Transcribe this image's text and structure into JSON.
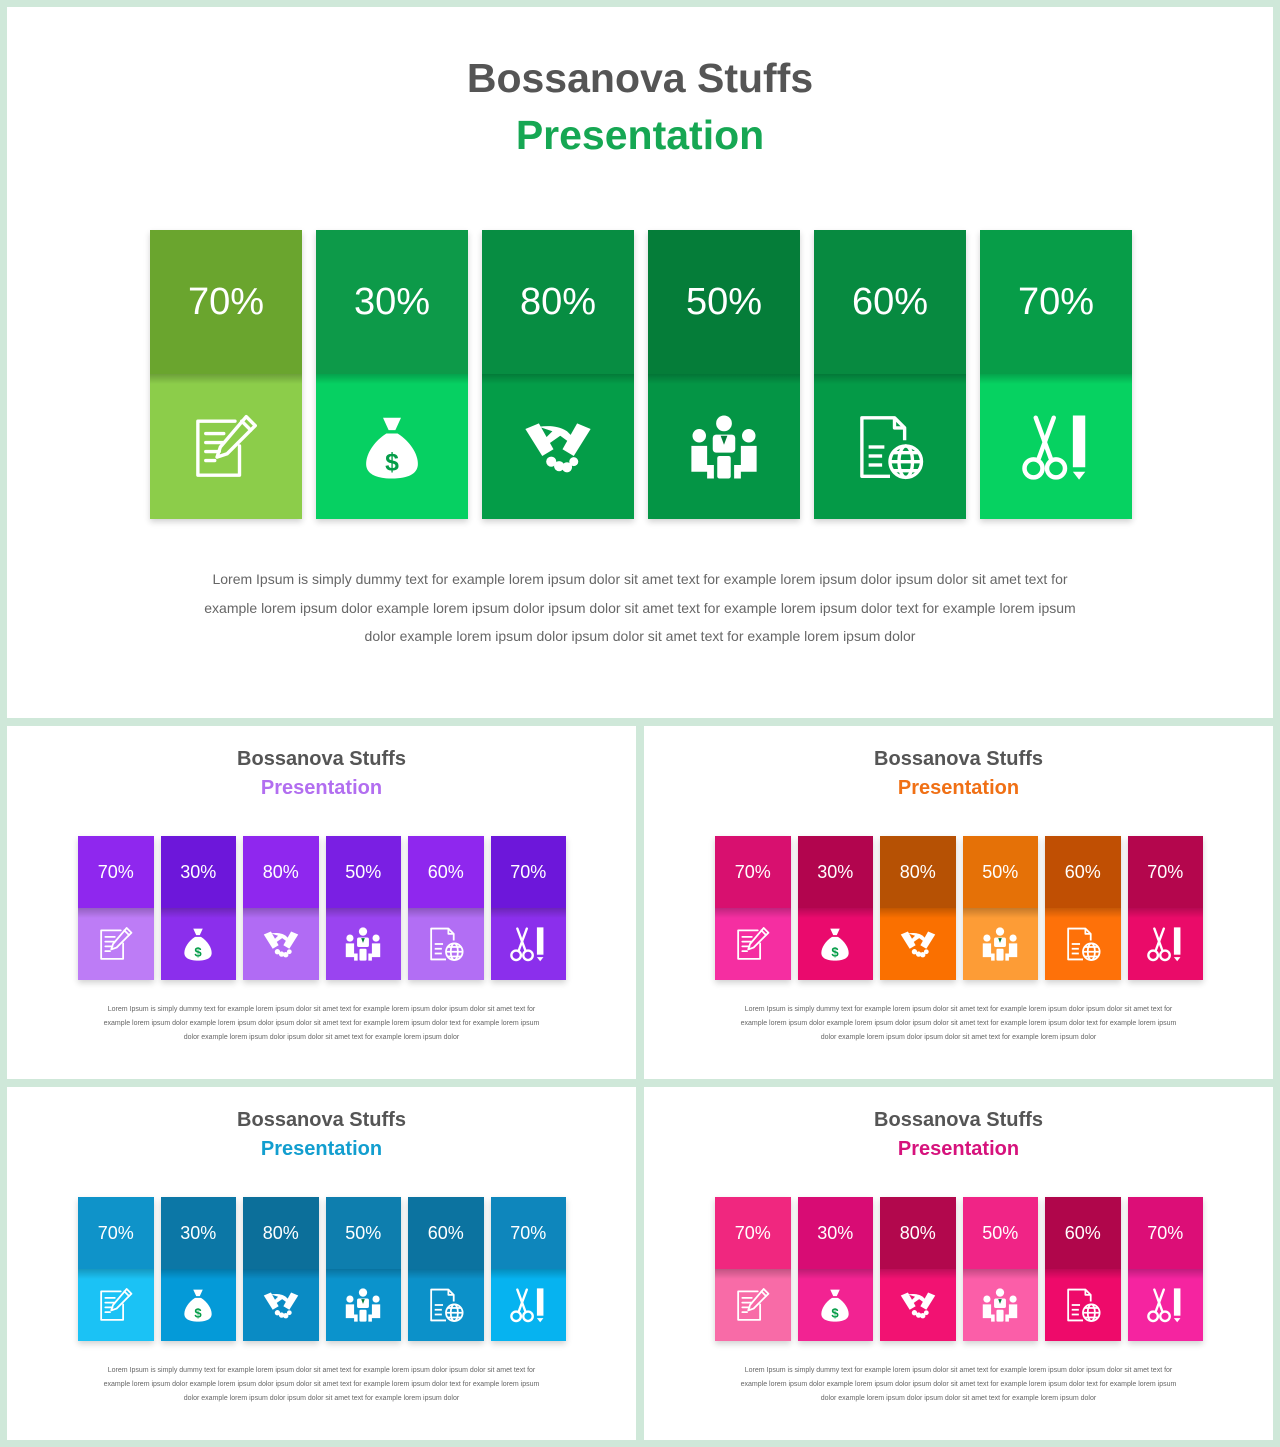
{
  "body_lines": [
    "Lorem Ipsum is simply dummy text for example lorem ipsum dolor sit amet text for example lorem ipsum dolor ipsum dolor sit amet text for",
    "example lorem ipsum dolor example lorem ipsum dolor ipsum dolor sit amet text for example lorem ipsum dolor text for example lorem ipsum",
    "dolor example lorem ipsum dolor ipsum dolor sit amet text for example lorem ipsum dolor"
  ],
  "icons": [
    "note-edit-icon",
    "money-bag-icon",
    "handshake-icon",
    "team-meeting-icon",
    "web-document-icon",
    "scissors-icon"
  ],
  "slides": [
    {
      "title": "Bossanova Stuffs",
      "subtitle": "Presentation",
      "subtitle_color": "#16a753",
      "cards": [
        {
          "value": "70%",
          "top_color": "#6aa52e",
          "bottom_color": "#8ccd4a"
        },
        {
          "value": "30%",
          "top_color": "#0d9a49",
          "bottom_color": "#06d062"
        },
        {
          "value": "80%",
          "top_color": "#078d42",
          "bottom_color": "#049d48"
        },
        {
          "value": "50%",
          "top_color": "#057d39",
          "bottom_color": "#049545"
        },
        {
          "value": "60%",
          "top_color": "#078a40",
          "bottom_color": "#049a47"
        },
        {
          "value": "70%",
          "top_color": "#079d48",
          "bottom_color": "#06d261"
        }
      ]
    },
    {
      "title": "Bossanova Stuffs",
      "subtitle": "Presentation",
      "subtitle_color": "#b26ef0",
      "cards": [
        {
          "value": "70%",
          "top_color": "#8f27ee",
          "bottom_color": "#bd7cf6"
        },
        {
          "value": "30%",
          "top_color": "#6d17da",
          "bottom_color": "#8b2fec"
        },
        {
          "value": "80%",
          "top_color": "#8f27ee",
          "bottom_color": "#b16bf4"
        },
        {
          "value": "50%",
          "top_color": "#7a1fe3",
          "bottom_color": "#9a44f0"
        },
        {
          "value": "60%",
          "top_color": "#8f27ee",
          "bottom_color": "#b26ef4"
        },
        {
          "value": "70%",
          "top_color": "#6d17da",
          "bottom_color": "#8b2fec"
        }
      ]
    },
    {
      "title": "Bossanova Stuffs",
      "subtitle": "Presentation",
      "subtitle_color": "#f07015",
      "cards": [
        {
          "value": "70%",
          "top_color": "#d8106f",
          "bottom_color": "#f52ea1"
        },
        {
          "value": "30%",
          "top_color": "#b2054e",
          "bottom_color": "#ea0a6d"
        },
        {
          "value": "80%",
          "top_color": "#b65104",
          "bottom_color": "#fa7000"
        },
        {
          "value": "50%",
          "top_color": "#e57107",
          "bottom_color": "#fd9c36"
        },
        {
          "value": "60%",
          "top_color": "#c04f03",
          "bottom_color": "#fe7109"
        },
        {
          "value": "70%",
          "top_color": "#b4064d",
          "bottom_color": "#ea0b69"
        }
      ]
    },
    {
      "title": "Bossanova Stuffs",
      "subtitle": "Presentation",
      "subtitle_color": "#129ecf",
      "cards": [
        {
          "value": "70%",
          "top_color": "#0f93c9",
          "bottom_color": "#1bc2f5"
        },
        {
          "value": "30%",
          "top_color": "#0c77a6",
          "bottom_color": "#049ad8"
        },
        {
          "value": "80%",
          "top_color": "#0c6f9a",
          "bottom_color": "#0a8bc4"
        },
        {
          "value": "50%",
          "top_color": "#0e7eae",
          "bottom_color": "#0b93cc"
        },
        {
          "value": "60%",
          "top_color": "#0c73a0",
          "bottom_color": "#0c91c9"
        },
        {
          "value": "70%",
          "top_color": "#0e86bc",
          "bottom_color": "#06b3f0"
        }
      ]
    },
    {
      "title": "Bossanova Stuffs",
      "subtitle": "Presentation",
      "subtitle_color": "#d6127c",
      "cards": [
        {
          "value": "70%",
          "top_color": "#f0277f",
          "bottom_color": "#f86ba7"
        },
        {
          "value": "30%",
          "top_color": "#d80c74",
          "bottom_color": "#f22392"
        },
        {
          "value": "80%",
          "top_color": "#b2084d",
          "bottom_color": "#f21272"
        },
        {
          "value": "50%",
          "top_color": "#f02486",
          "bottom_color": "#fb5ea8"
        },
        {
          "value": "60%",
          "top_color": "#b0064b",
          "bottom_color": "#ee0a6a"
        },
        {
          "value": "70%",
          "top_color": "#dc0e77",
          "bottom_color": "#f524a0"
        }
      ]
    }
  ]
}
